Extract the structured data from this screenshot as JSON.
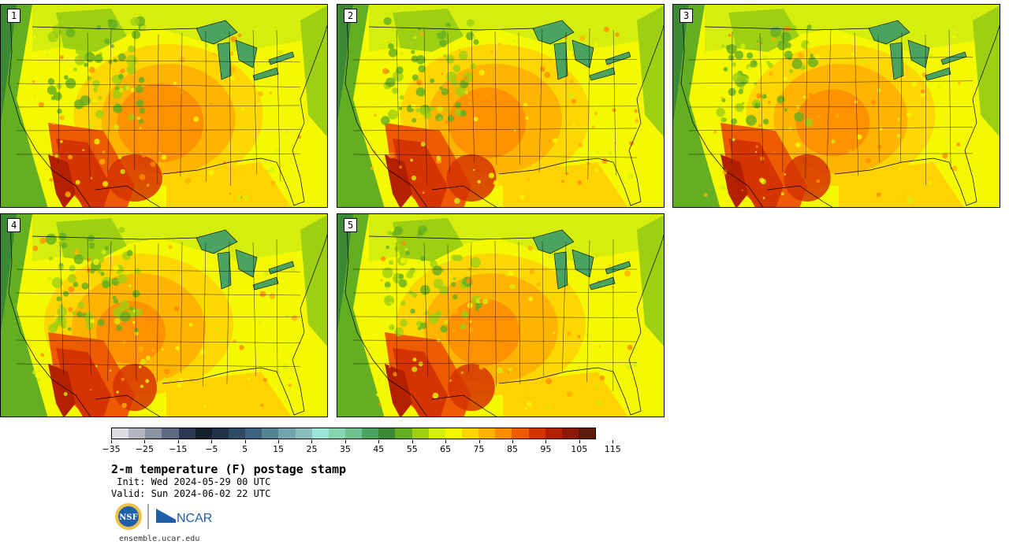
{
  "stamps": [
    {
      "label": "1",
      "hot_center": 0.45,
      "heat": 1.0
    },
    {
      "label": "2",
      "hot_center": 0.4,
      "heat": 0.9
    },
    {
      "label": "3",
      "hot_center": 0.45,
      "heat": 0.85
    },
    {
      "label": "4",
      "hot_center": 0.3,
      "heat": 0.8
    },
    {
      "label": "5",
      "hot_center": 0.38,
      "heat": 0.85
    }
  ],
  "colorbar": {
    "colors": [
      "#dcdde2",
      "#b4b7c0",
      "#8c93a3",
      "#5f6a82",
      "#2c3753",
      "#15202f",
      "#213349",
      "#2f4a65",
      "#3e627d",
      "#558396",
      "#73a3ad",
      "#88bfbd",
      "#9be4d8",
      "#85d7b1",
      "#6ec28f",
      "#4aa35e",
      "#3b8a33",
      "#64ae21",
      "#9dcf12",
      "#d6ee0e",
      "#f5f900",
      "#ffd200",
      "#ffb000",
      "#ff8c00",
      "#ee5a00",
      "#d53400",
      "#b22000",
      "#8e1805",
      "#5e1a0b"
    ],
    "tick_values": [
      "−35",
      "−25",
      "−15",
      "−5",
      "5",
      "15",
      "25",
      "35",
      "45",
      "55",
      "65",
      "75",
      "85",
      "95",
      "105",
      "115"
    ]
  },
  "title": "2-m temperature (F) postage stamp",
  "init": " Init: Wed 2024-05-29 00 UTC",
  "valid": "Valid: Sun 2024-06-02 22 UTC",
  "logos": {
    "nsf": "NSF",
    "ncar": "NCAR"
  },
  "url": "ensemble.ucar.edu"
}
